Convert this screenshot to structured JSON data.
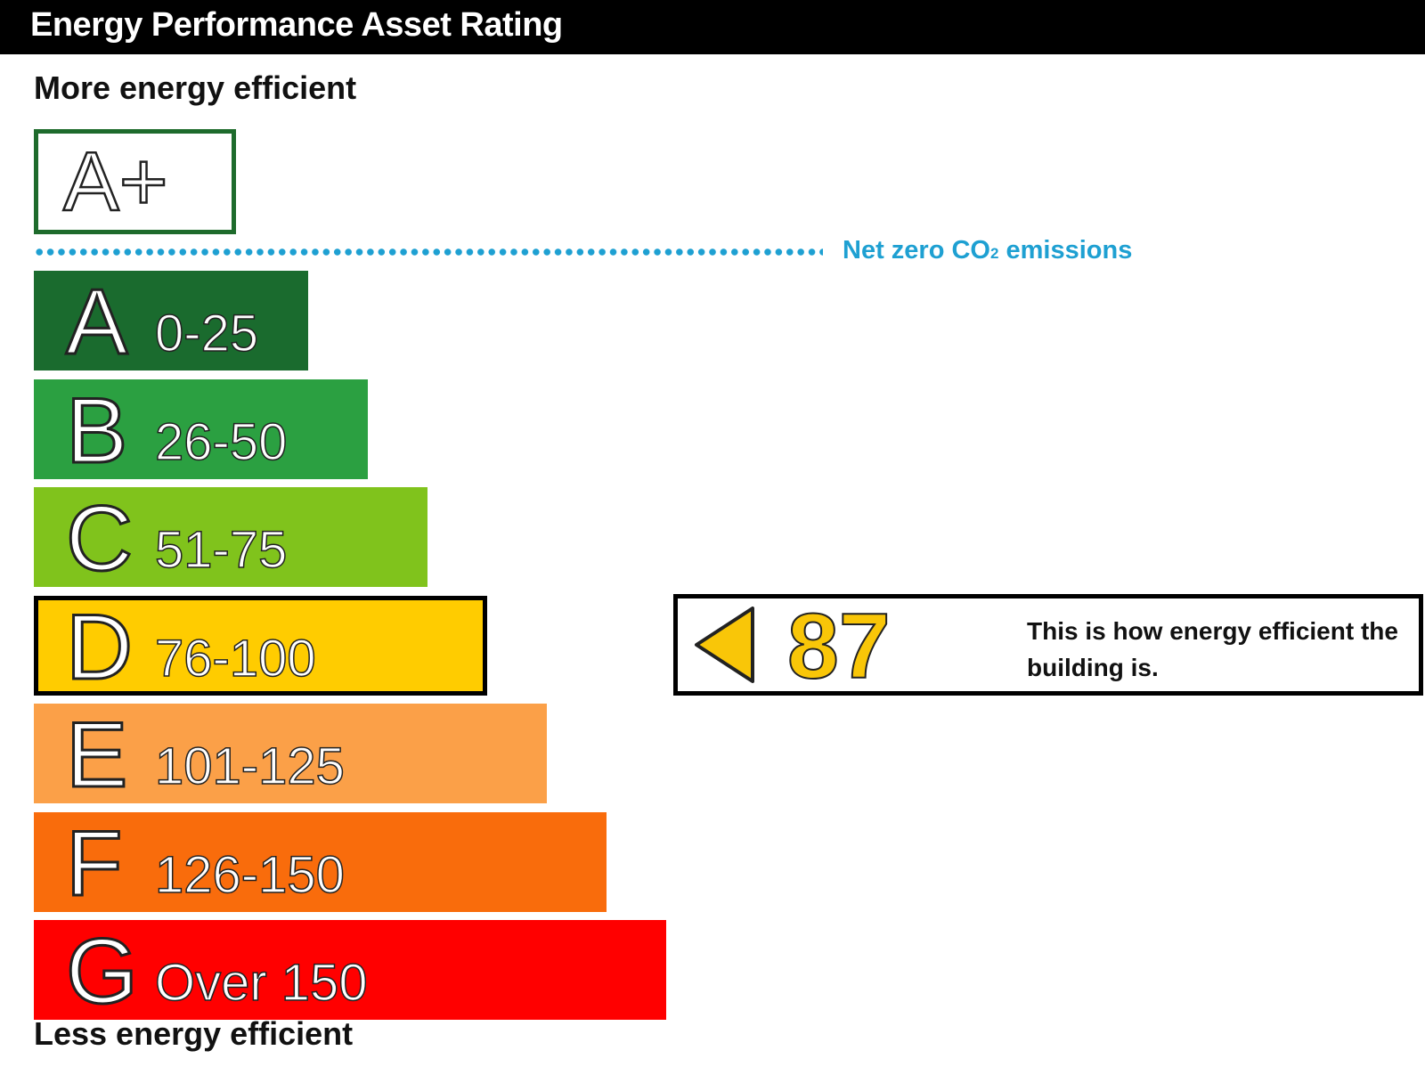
{
  "header": {
    "title": "Energy Performance Asset Rating"
  },
  "labels": {
    "more_efficient": "More energy efficient",
    "less_efficient": "Less energy efficient"
  },
  "aplus": {
    "letter": "A+",
    "color": "#1e6b2c"
  },
  "net_zero": {
    "label": "Net zero CO",
    "subscript": "2",
    "label_tail": " emissions",
    "color": "#1ea0d2"
  },
  "current": {
    "value": "87",
    "band": "D",
    "text": "This is how energy efficient the building is.",
    "color": "#f9c608"
  },
  "chart_data": {
    "type": "bar",
    "categories": [
      "A",
      "B",
      "C",
      "D",
      "E",
      "F",
      "G"
    ],
    "ranges": [
      "0-25",
      "26-50",
      "51-75",
      "76-100",
      "101-125",
      "126-150",
      "Over 150"
    ],
    "colors": [
      "#1a6b2e",
      "#2ba041",
      "#80c31c",
      "#ffcc00",
      "#fba048",
      "#f96c0c",
      "#ff0000"
    ],
    "current_category": "D",
    "current_value": 87
  }
}
